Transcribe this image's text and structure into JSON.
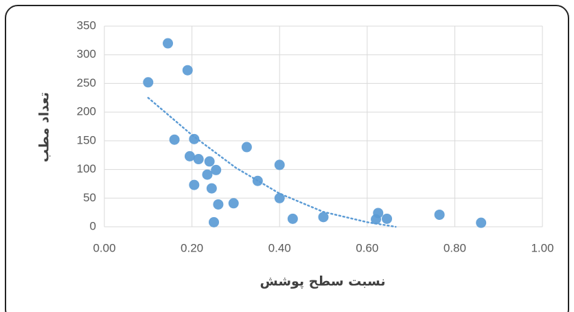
{
  "chart_data": {
    "type": "scatter",
    "xlabel": "نسبت سطح پوشش",
    "ylabel": "تعداد مطب",
    "series": [
      {
        "color": "#5b9bd5",
        "x": [
          0.1,
          0.145,
          0.19,
          0.16,
          0.205,
          0.195,
          0.215,
          0.24,
          0.255,
          0.235,
          0.205,
          0.245,
          0.26,
          0.25,
          0.295,
          0.325,
          0.35,
          0.4,
          0.4,
          0.43,
          0.5,
          0.62,
          0.625,
          0.645,
          0.765,
          0.86
        ],
        "values": [
          252,
          320,
          273,
          152,
          153,
          123,
          118,
          114,
          99,
          91,
          73,
          67,
          39,
          8,
          41,
          139,
          80,
          108,
          50,
          14,
          17,
          13,
          24,
          14,
          21,
          7
        ]
      }
    ],
    "trendline": {
      "color": "#5b9bd5",
      "style": "dotted",
      "x": [
        0.1,
        0.2,
        0.3,
        0.4,
        0.5,
        0.6,
        0.665
      ],
      "values": [
        225,
        160,
        103,
        58,
        26,
        8,
        0
      ]
    },
    "xlim": [
      0,
      1
    ],
    "ylim": [
      0,
      350
    ],
    "xticks": [
      {
        "value": 0,
        "label": "0.00"
      },
      {
        "value": 0.2,
        "label": "0.20"
      },
      {
        "value": 0.4,
        "label": "0.40"
      },
      {
        "value": 0.6,
        "label": "0.60"
      },
      {
        "value": 0.8,
        "label": "0.80"
      },
      {
        "value": 1,
        "label": "1.00"
      }
    ],
    "yticks": [
      0,
      50,
      100,
      150,
      200,
      250,
      300,
      350
    ],
    "grid": true
  }
}
